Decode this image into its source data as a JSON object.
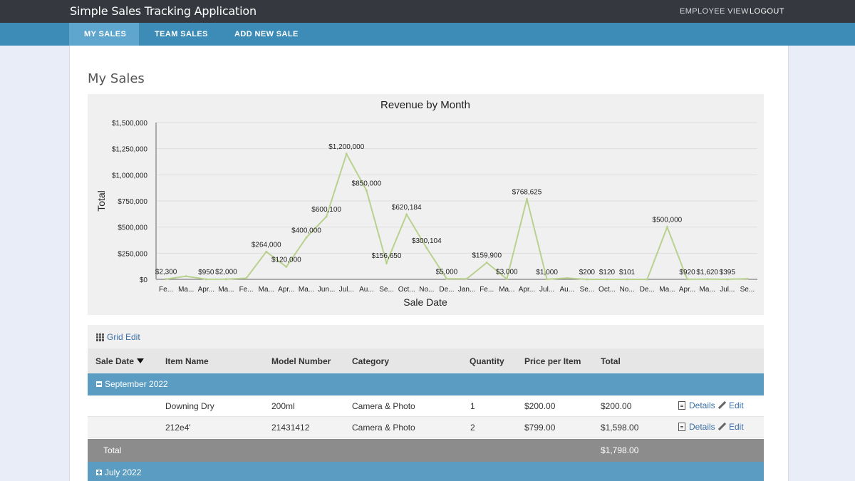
{
  "app": {
    "title": "Simple Sales Tracking Application"
  },
  "header": {
    "employee_view": "EMPLOYEE VIEW",
    "logout": "LOGOUT"
  },
  "nav": {
    "tabs": [
      "MY SALES",
      "TEAM SALES",
      "ADD NEW SALE"
    ],
    "active": "MY SALES"
  },
  "page": {
    "title": "My Sales"
  },
  "chart_data": {
    "type": "line",
    "title": "Revenue by Month",
    "xlabel": "Sale Date",
    "ylabel": "Total",
    "ylim": [
      0,
      1500000
    ],
    "yticks": [
      "$0",
      "$250,000",
      "$500,000",
      "$750,000",
      "$1,000,000",
      "$1,250,000",
      "$1,500,000"
    ],
    "categories": [
      "Fe...",
      "Ma...",
      "Apr...",
      "Ma...",
      "Fe...",
      "Ma...",
      "Apr...",
      "Ma...",
      "Jun...",
      "Jul...",
      "Au...",
      "Se...",
      "Oct...",
      "No...",
      "De...",
      "Jan...",
      "Fe...",
      "Ma...",
      "Apr...",
      "Jul...",
      "Au...",
      "Se...",
      "Oct...",
      "No...",
      "De...",
      "Ma...",
      "Apr...",
      "Ma...",
      "Jul...",
      "Se..."
    ],
    "values": [
      2300,
      30000,
      950,
      2000,
      10000,
      264000,
      120000,
      400000,
      600100,
      1200000,
      850000,
      156650,
      620184,
      300104,
      5000,
      5000,
      159900,
      3000,
      768625,
      1000,
      12000,
      200,
      120,
      101,
      100,
      500000,
      920,
      1620,
      395,
      5000
    ],
    "point_labels": [
      "$2,300",
      "",
      "$950",
      "$2,000",
      "",
      "$264,000",
      "$120,000",
      "$400,000",
      "$600,100",
      "$1,200,000",
      "$850,000",
      "$156,650",
      "$620,184",
      "$300,104",
      "$5,000",
      "",
      "$159,900",
      "$3,000",
      "$768,625",
      "$1,000",
      "",
      "$200",
      "$120",
      "$101",
      "",
      "$500,000",
      "$920",
      "$1,620",
      "$395",
      ""
    ],
    "series_color": "#b9d18f",
    "grid": true
  },
  "grid": {
    "edit_label": "Grid Edit"
  },
  "table": {
    "columns": [
      "Sale Date",
      "Item Name",
      "Model Number",
      "Category",
      "Quantity",
      "Price per Item",
      "Total"
    ],
    "groups": [
      {
        "label": "September 2022",
        "expanded": true,
        "rows": [
          {
            "item": "Downing Dry",
            "model": "200ml",
            "category": "Camera & Photo",
            "quantity": "1",
            "price": "$200.00",
            "total": "$200.00"
          },
          {
            "item": "212e4'",
            "model": "21431412",
            "category": "Camera & Photo",
            "quantity": "2",
            "price": "$799.00",
            "total": "$1,598.00"
          }
        ],
        "total_label": "Total",
        "total_value": "$1,798.00"
      },
      {
        "label": "July 2022",
        "expanded": false
      }
    ],
    "actions": {
      "details": "Details",
      "edit": "Edit"
    }
  },
  "colors": {
    "topbar": "#35393f",
    "navbar": "#3d8bb7",
    "group_row": "#5b9dc2",
    "link": "#3a6ea5"
  }
}
